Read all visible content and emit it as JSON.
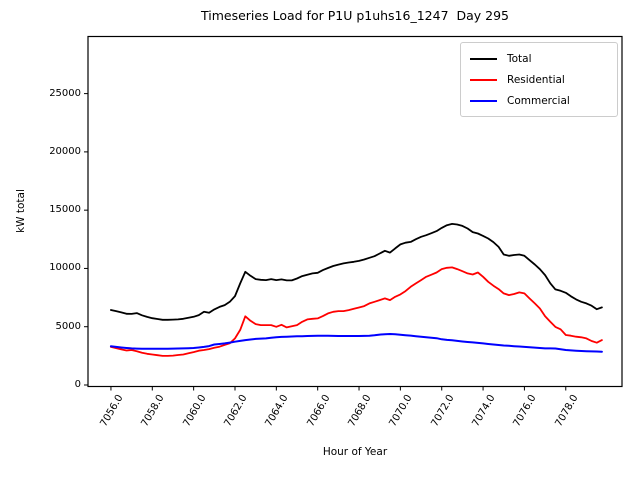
{
  "title": "Timeseries Load for P1U p1uhs16_1247  Day 295",
  "chart_data": {
    "type": "line",
    "title": "Timeseries Load for P1U p1uhs16_1247  Day 295",
    "xlabel": "Hour of Year",
    "ylabel": "kW total",
    "xlim": [
      7054.89,
      7080.72
    ],
    "ylim": [
      -130,
      29900
    ],
    "x_ticks": [
      7056,
      7058,
      7060,
      7062,
      7064,
      7066,
      7068,
      7070,
      7072,
      7074,
      7076,
      7078
    ],
    "y_ticks": [
      0,
      5000,
      10000,
      15000,
      20000,
      25000
    ],
    "grid": false,
    "legend_position": "upper right",
    "x_start": 7056.0,
    "x_step": 0.25,
    "series": [
      {
        "name": "Total",
        "color": "#000000",
        "line_width": 1.8,
        "values": [
          6430,
          6340,
          6230,
          6110,
          6100,
          6165,
          5975,
          5840,
          5730,
          5660,
          5590,
          5590,
          5610,
          5630,
          5680,
          5765,
          5850,
          5995,
          6280,
          6195,
          6485,
          6700,
          6855,
          7140,
          7625,
          8720,
          9710,
          9370,
          9085,
          9025,
          8995,
          9085,
          8995,
          9055,
          8975,
          8970,
          9140,
          9340,
          9460,
          9575,
          9625,
          9855,
          10040,
          10210,
          10330,
          10430,
          10505,
          10565,
          10645,
          10770,
          10910,
          11050,
          11285,
          11510,
          11355,
          11715,
          12060,
          12205,
          12280,
          12510,
          12710,
          12855,
          13020,
          13200,
          13480,
          13710,
          13820,
          13770,
          13650,
          13425,
          13120,
          13000,
          12790,
          12570,
          12260,
          11845,
          11195,
          11080,
          11150,
          11195,
          11080,
          10710,
          10340,
          9935,
          9425,
          8725,
          8200,
          8080,
          7910,
          7610,
          7340,
          7140,
          7000,
          6800,
          6500,
          6660
        ]
      },
      {
        "name": "Residential",
        "color": "#ff0000",
        "line_width": 1.8,
        "values": [
          3265,
          3165,
          3050,
          2960,
          3000,
          2900,
          2770,
          2675,
          2615,
          2555,
          2495,
          2495,
          2525,
          2575,
          2615,
          2715,
          2820,
          2940,
          3000,
          3080,
          3200,
          3285,
          3435,
          3575,
          4000,
          4730,
          5890,
          5510,
          5225,
          5140,
          5140,
          5140,
          4990,
          5165,
          4940,
          5040,
          5140,
          5420,
          5630,
          5680,
          5715,
          5910,
          6140,
          6280,
          6340,
          6340,
          6425,
          6540,
          6650,
          6770,
          7000,
          7135,
          7285,
          7425,
          7285,
          7565,
          7775,
          8055,
          8420,
          8715,
          9000,
          9280,
          9465,
          9655,
          9940,
          10055,
          10090,
          9940,
          9765,
          9575,
          9480,
          9655,
          9280,
          8855,
          8520,
          8225,
          7855,
          7710,
          7810,
          7940,
          7855,
          7420,
          7000,
          6565,
          5890,
          5420,
          4980,
          4780,
          4285,
          4225,
          4140,
          4095,
          4000,
          3770,
          3625,
          3855
        ]
      },
      {
        "name": "Commercial",
        "color": "#0000ff",
        "line_width": 2.0,
        "values": [
          3315,
          3265,
          3215,
          3170,
          3140,
          3120,
          3110,
          3110,
          3110,
          3110,
          3110,
          3115,
          3120,
          3130,
          3140,
          3155,
          3170,
          3215,
          3265,
          3340,
          3470,
          3520,
          3570,
          3640,
          3710,
          3780,
          3855,
          3900,
          3950,
          3980,
          4000,
          4050,
          4100,
          4125,
          4140,
          4160,
          4175,
          4190,
          4200,
          4210,
          4220,
          4225,
          4220,
          4210,
          4205,
          4200,
          4200,
          4200,
          4200,
          4210,
          4225,
          4265,
          4325,
          4355,
          4375,
          4355,
          4315,
          4275,
          4235,
          4190,
          4145,
          4095,
          4050,
          4010,
          3920,
          3870,
          3830,
          3780,
          3730,
          3690,
          3650,
          3610,
          3570,
          3520,
          3470,
          3430,
          3390,
          3360,
          3330,
          3300,
          3265,
          3230,
          3205,
          3175,
          3140,
          3140,
          3130,
          3060,
          3000,
          2970,
          2940,
          2920,
          2900,
          2880,
          2870,
          2860
        ]
      }
    ]
  }
}
